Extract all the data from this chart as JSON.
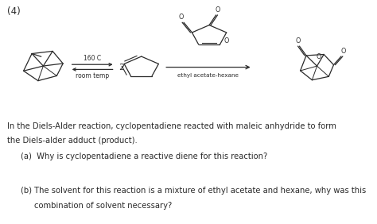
{
  "title_label": "(4)",
  "line1": "In the Diels-Alder reaction, cyclopentadiene reacted with maleic anhydride to form",
  "line2": "the Diels-alder adduct (product).",
  "qa_label": "(a)",
  "qa_text": "Why is cyclopentadiene a reactive diene for this reaction?",
  "qb_label": "(b)",
  "qb_text1": "The solvent for this reaction is a mixture of ethyl acetate and hexane, why was this",
  "qb_text2": "combination of solvent necessary?",
  "arrow_top": "160 C",
  "arrow_bottom": "room temp",
  "arrow2_label": "ethyl acetate-hexane",
  "coeff": "2",
  "bg_color": "#ffffff",
  "text_color": "#2a2a2a",
  "fontsize_main": 7.2,
  "fontsize_title": 8.5,
  "fontsize_q": 7.2,
  "fontsize_chem": 5.8
}
